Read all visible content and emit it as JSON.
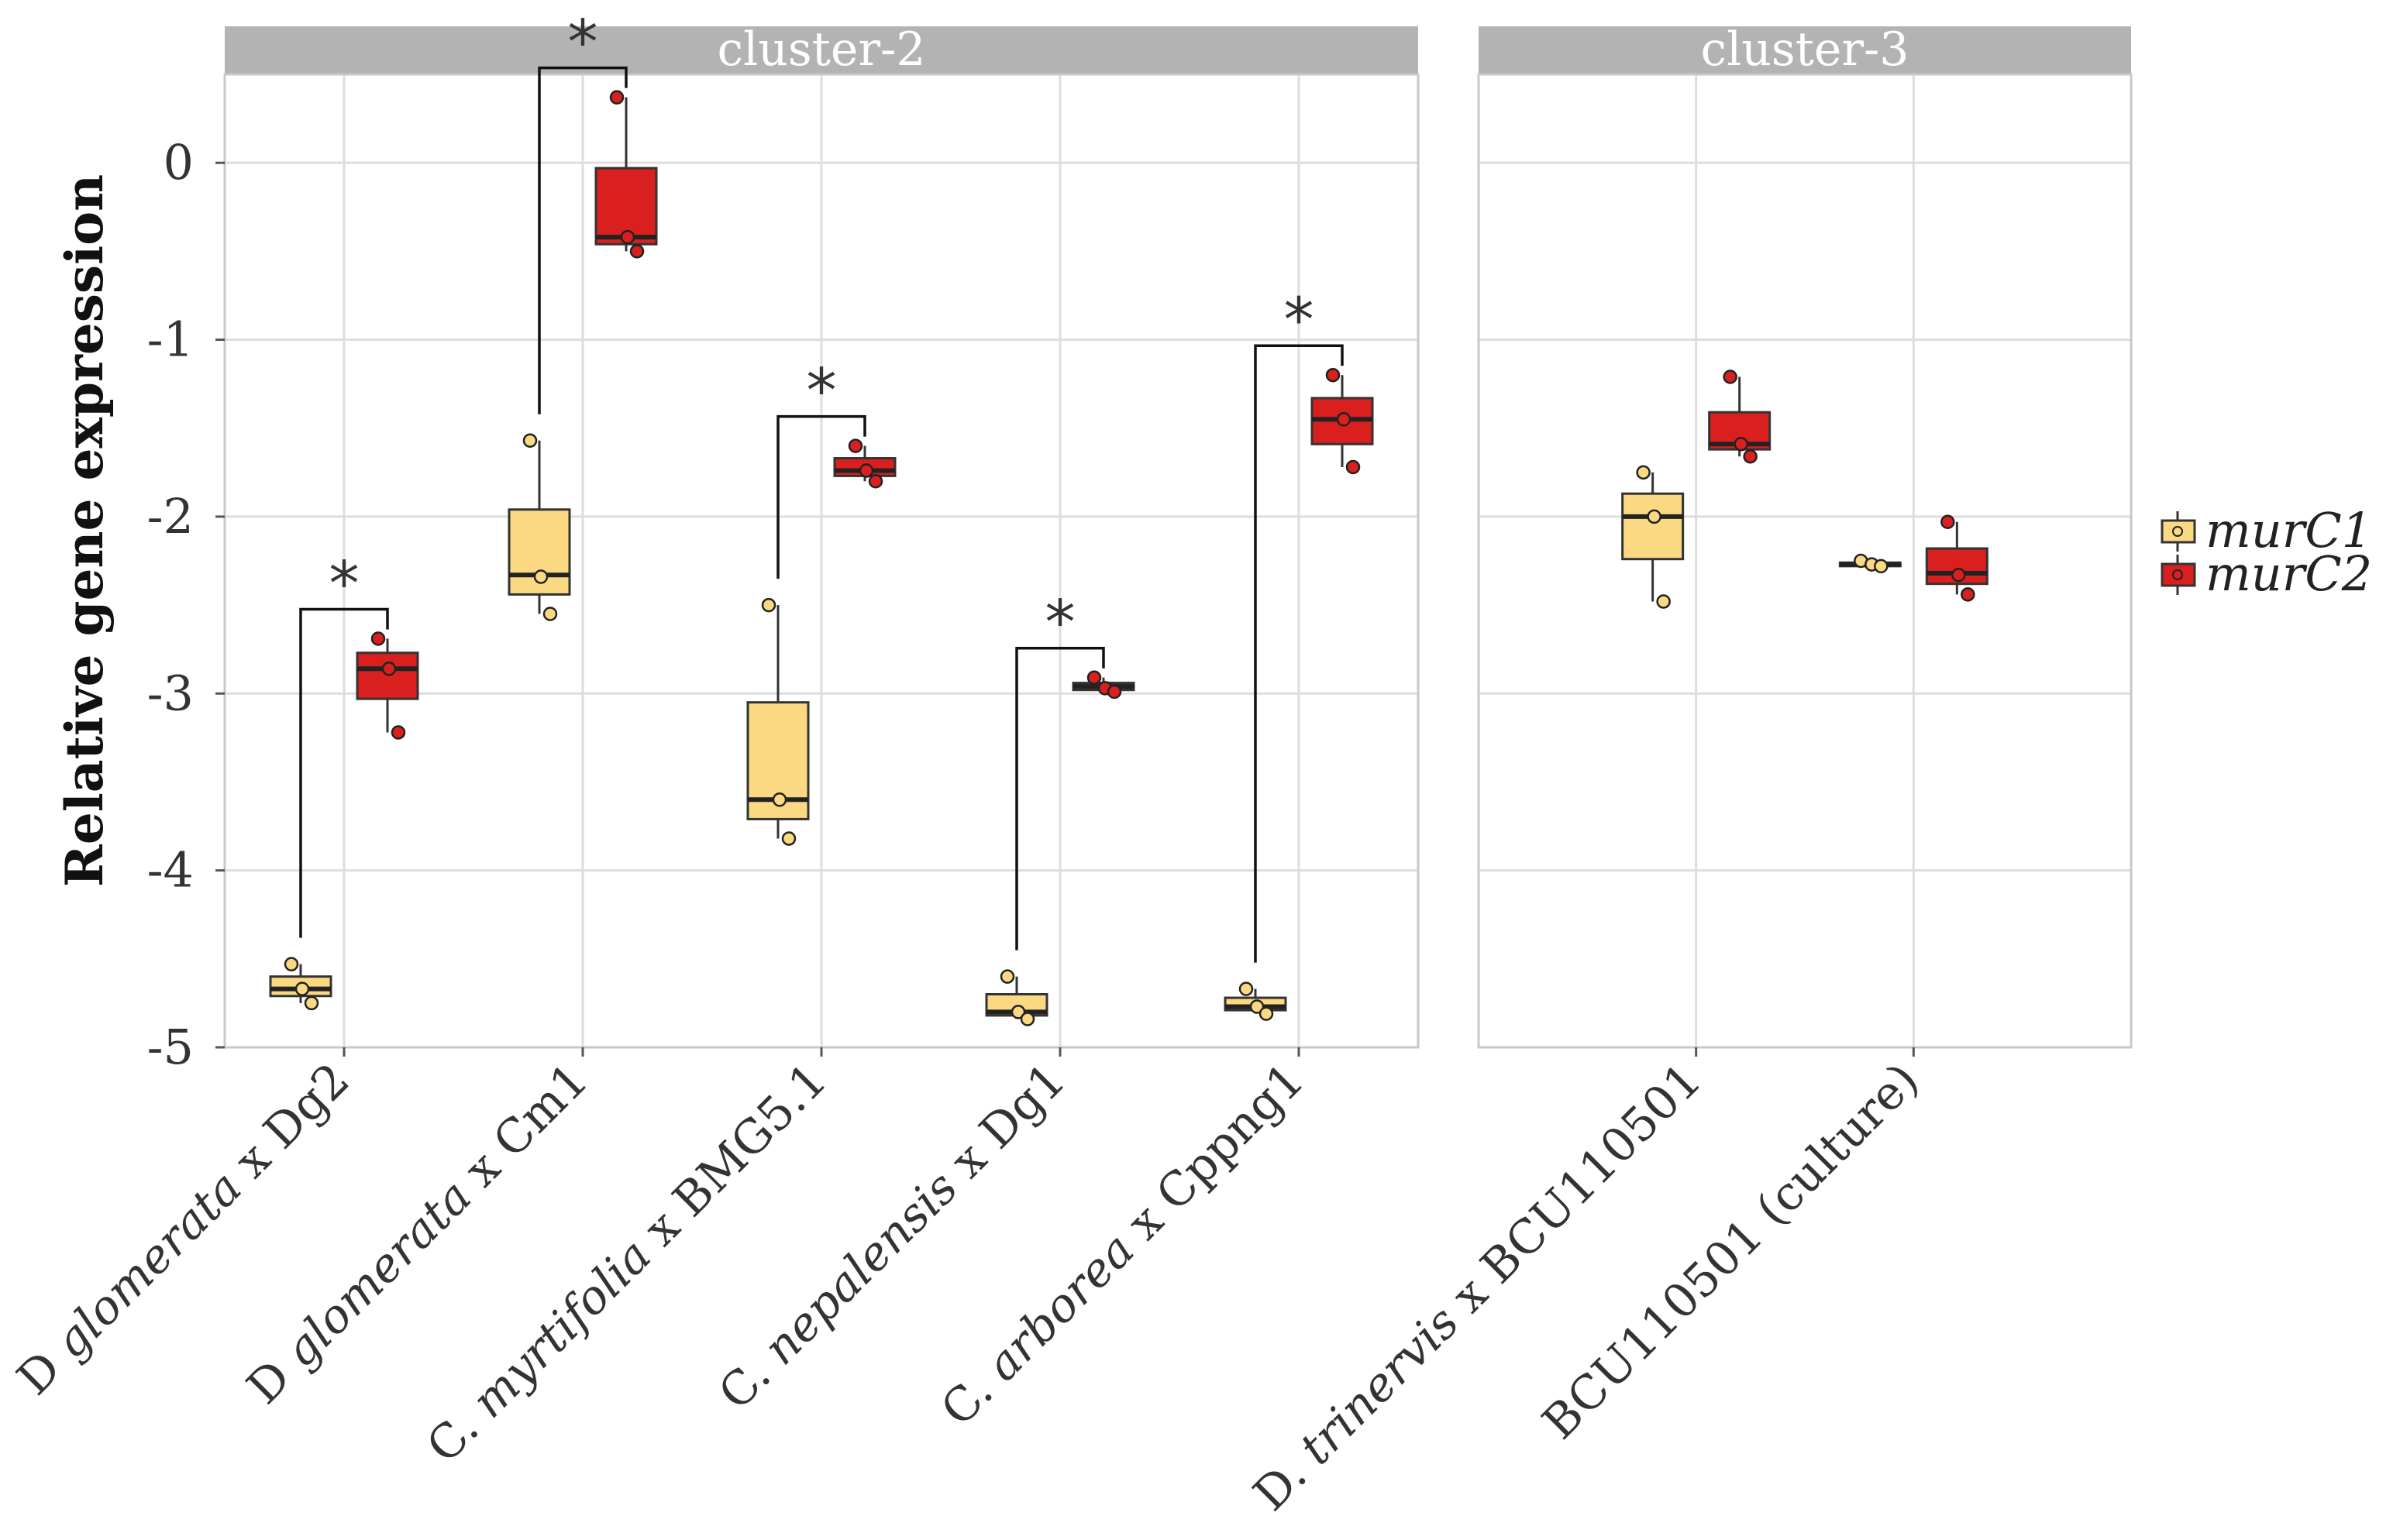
{
  "chart_data": {
    "type": "box",
    "ylabel": "Relative gene expression",
    "xlabel": "",
    "ylim": [
      -5,
      0.5
    ],
    "yticks": [
      "0",
      "-1",
      "-2",
      "-3",
      "-4",
      "-5"
    ],
    "grid": true,
    "legend": {
      "position": "right",
      "entries": [
        {
          "name": "murC1",
          "color": "#FBD882"
        },
        {
          "name": "murC2",
          "color": "#DA1F1F"
        }
      ]
    },
    "colors": {
      "murC1": "#FBD882",
      "murC2": "#DA1F1F",
      "strip": "#B3B3B3",
      "grid": "#DEDEDE"
    },
    "panels": [
      {
        "title": "cluster-2",
        "categories": [
          {
            "label": "D glomerata x Dg2",
            "label_parts": [
              {
                "t": "D ",
                "i": false
              },
              {
                "t": "glomerata",
                "i": true
              },
              {
                "t": " x Dg2",
                "i": false
              }
            ],
            "significant": true,
            "sig_label": "*",
            "murC1": {
              "min": -4.75,
              "q1": -4.71,
              "median": -4.67,
              "q3": -4.6,
              "max": -4.53,
              "points": [
                -4.53,
                -4.67,
                -4.75
              ]
            },
            "murC2": {
              "min": -3.22,
              "q1": -3.03,
              "median": -2.86,
              "q3": -2.77,
              "max": -2.69,
              "points": [
                -2.69,
                -2.86,
                -3.22
              ]
            }
          },
          {
            "label": "D glomerata x Cm1",
            "label_parts": [
              {
                "t": "D ",
                "i": false
              },
              {
                "t": "glomerata",
                "i": true
              },
              {
                "t": " x Cm1",
                "i": false
              }
            ],
            "significant": true,
            "sig_label": "*",
            "murC1": {
              "min": -2.55,
              "q1": -2.44,
              "median": -2.33,
              "q3": -1.96,
              "max": -1.57,
              "points": [
                -1.57,
                -2.34,
                -2.55
              ]
            },
            "murC2": {
              "min": -0.5,
              "q1": -0.46,
              "median": -0.42,
              "q3": -0.03,
              "max": 0.37,
              "points": [
                0.37,
                -0.42,
                -0.5
              ]
            }
          },
          {
            "label": "C. myrtifolia x BMG5.1",
            "label_parts": [
              {
                "t": "C. ",
                "i": false
              },
              {
                "t": "myrtifolia",
                "i": true
              },
              {
                "t": " x BMG5.1",
                "i": false
              }
            ],
            "significant": true,
            "sig_label": "*",
            "murC1": {
              "min": -3.82,
              "q1": -3.71,
              "median": -3.6,
              "q3": -3.05,
              "max": -2.5,
              "points": [
                -2.5,
                -3.6,
                -3.82
              ]
            },
            "murC2": {
              "min": -1.8,
              "q1": -1.77,
              "median": -1.74,
              "q3": -1.67,
              "max": -1.6,
              "points": [
                -1.6,
                -1.74,
                -1.8
              ]
            }
          },
          {
            "label": "C. nepalensis x Dg1",
            "label_parts": [
              {
                "t": "C. ",
                "i": false
              },
              {
                "t": "nepalensis",
                "i": true
              },
              {
                "t": " x Dg1",
                "i": false
              }
            ],
            "significant": true,
            "sig_label": "*",
            "murC1": {
              "min": -4.84,
              "q1": -4.82,
              "median": -4.8,
              "q3": -4.7,
              "max": -4.6,
              "points": [
                -4.6,
                -4.8,
                -4.84
              ]
            },
            "murC2": {
              "min": -2.99,
              "q1": -2.98,
              "median": -2.96,
              "q3": -2.94,
              "max": -2.91,
              "points": [
                -2.91,
                -2.97,
                -2.99
              ]
            }
          },
          {
            "label": "C. arborea x Cppng1",
            "label_parts": [
              {
                "t": "C. ",
                "i": false
              },
              {
                "t": "arborea",
                "i": true
              },
              {
                "t": " x Cppng1",
                "i": false
              }
            ],
            "significant": true,
            "sig_label": "*",
            "murC1": {
              "min": -4.81,
              "q1": -4.79,
              "median": -4.77,
              "q3": -4.72,
              "max": -4.67,
              "points": [
                -4.67,
                -4.77,
                -4.81
              ]
            },
            "murC2": {
              "min": -1.72,
              "q1": -1.59,
              "median": -1.45,
              "q3": -1.33,
              "max": -1.2,
              "points": [
                -1.2,
                -1.45,
                -1.72
              ]
            }
          }
        ]
      },
      {
        "title": "cluster-3",
        "categories": [
          {
            "label": "D. trinervis x BCU110501",
            "label_parts": [
              {
                "t": "D. ",
                "i": false
              },
              {
                "t": "trinervis",
                "i": true
              },
              {
                "t": " x BCU110501",
                "i": false
              }
            ],
            "significant": false,
            "murC1": {
              "min": -2.48,
              "q1": -2.24,
              "median": -2.0,
              "q3": -1.87,
              "max": -1.75,
              "points": [
                -1.75,
                -2.0,
                -2.48
              ]
            },
            "murC2": {
              "min": -1.66,
              "q1": -1.62,
              "median": -1.59,
              "q3": -1.41,
              "max": -1.21,
              "points": [
                -1.21,
                -1.59,
                -1.66
              ]
            }
          },
          {
            "label": "BCU110501 (culture)",
            "label_parts": [
              {
                "t": "BCU110501 (culture)",
                "i": false
              }
            ],
            "significant": false,
            "murC1": {
              "min": -2.29,
              "q1": -2.28,
              "median": -2.27,
              "q3": -2.26,
              "max": -2.25,
              "points": [
                -2.25,
                -2.27,
                -2.28
              ]
            },
            "murC2": {
              "min": -2.44,
              "q1": -2.38,
              "median": -2.32,
              "q3": -2.18,
              "max": -2.03,
              "points": [
                -2.03,
                -2.33,
                -2.44
              ]
            }
          }
        ]
      }
    ]
  }
}
